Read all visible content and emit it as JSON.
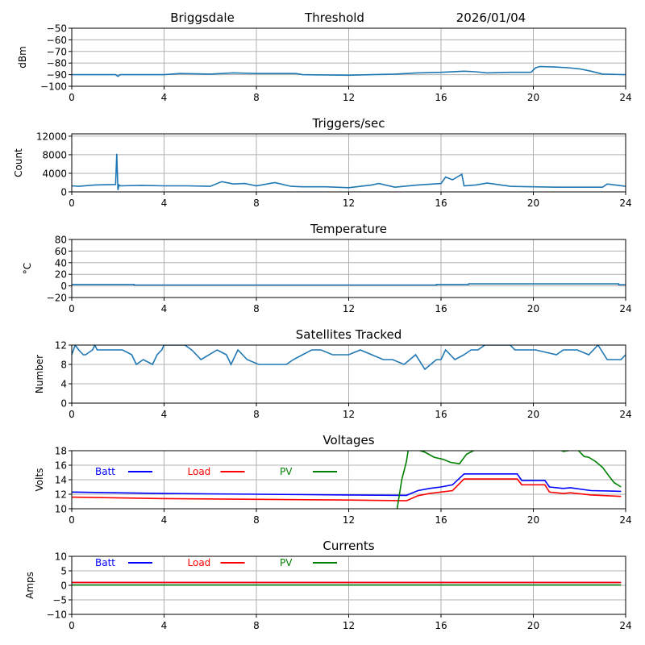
{
  "header": {
    "station": "Briggsdale",
    "subtitle": "Threshold",
    "date": "2026/01/04"
  },
  "chart_data": [
    {
      "type": "line",
      "id": "threshold",
      "title": "",
      "xlabel": "",
      "ylabel": "dBm",
      "xlim": [
        0,
        24
      ],
      "ylim": [
        -100,
        -50
      ],
      "xticks": [
        0,
        4,
        8,
        12,
        16,
        20,
        24
      ],
      "yticks": [
        -100,
        -90,
        -80,
        -70,
        -60,
        -50
      ],
      "ytick_labels": [
        "−100",
        "−90",
        "−80",
        "−70",
        "−60",
        "−50"
      ],
      "grid": true,
      "series": [
        {
          "name": "Threshold",
          "color": "#1f77b4",
          "x": [
            0,
            1.9,
            2.0,
            2.1,
            4,
            4.7,
            6,
            7,
            8,
            9.7,
            10,
            12,
            13,
            14,
            15,
            16,
            17,
            17.5,
            18,
            19,
            19.9,
            20.1,
            20.3,
            21,
            21.5,
            22,
            22.5,
            23,
            24
          ],
          "y": [
            -90,
            -90,
            -91.5,
            -90,
            -90,
            -89,
            -89.5,
            -88.5,
            -89,
            -89,
            -90,
            -90.5,
            -90,
            -89.5,
            -88.5,
            -88,
            -87,
            -87.5,
            -88.5,
            -88,
            -88,
            -84,
            -83,
            -83.5,
            -84,
            -85,
            -87,
            -89.5,
            -90
          ]
        }
      ]
    },
    {
      "type": "line",
      "id": "triggers",
      "title": "Triggers/sec",
      "xlabel": "",
      "ylabel": "Count",
      "xlim": [
        0,
        24
      ],
      "ylim": [
        0,
        12500
      ],
      "xticks": [
        0,
        4,
        8,
        12,
        16,
        20,
        24
      ],
      "yticks": [
        0,
        4000,
        8000,
        12000
      ],
      "grid": true,
      "series": [
        {
          "name": "Triggers",
          "color": "#1f77b4",
          "x": [
            0,
            0.3,
            1,
            1.9,
            1.95,
            2.0,
            2.05,
            2.1,
            3,
            4,
            5,
            6,
            6.5,
            7,
            7.5,
            8,
            8.8,
            9.5,
            10,
            11,
            12,
            13,
            13.3,
            14,
            15,
            16,
            16.2,
            16.5,
            16.9,
            17,
            17.5,
            18,
            19,
            20,
            21,
            22,
            23,
            23.2,
            24
          ],
          "y": [
            1300,
            1200,
            1500,
            1600,
            8200,
            400,
            1500,
            1300,
            1400,
            1300,
            1300,
            1200,
            2200,
            1700,
            1800,
            1300,
            2000,
            1200,
            1100,
            1100,
            900,
            1500,
            1800,
            1000,
            1500,
            1800,
            3200,
            2600,
            3800,
            1300,
            1500,
            1900,
            1200,
            1100,
            1000,
            1000,
            1000,
            1700,
            1200
          ]
        }
      ]
    },
    {
      "type": "line",
      "id": "temperature",
      "title": "Temperature",
      "xlabel": "",
      "ylabel": "°C",
      "xlim": [
        0,
        24
      ],
      "ylim": [
        -20,
        80
      ],
      "xticks": [
        0,
        4,
        8,
        12,
        16,
        20,
        24
      ],
      "yticks": [
        -20,
        0,
        20,
        40,
        60,
        80
      ],
      "ytick_labels": [
        "−20",
        "0",
        "20",
        "40",
        "60",
        "80"
      ],
      "grid": true,
      "series": [
        {
          "name": "Temperature",
          "color": "#1f77b4",
          "x": [
            0,
            2.7,
            2.7,
            15.8,
            15.8,
            17.2,
            17.2,
            23.7,
            23.7,
            24
          ],
          "y": [
            2.5,
            2.5,
            1.5,
            1.5,
            2.5,
            2.5,
            3.5,
            3.5,
            2,
            2
          ]
        }
      ]
    },
    {
      "type": "line",
      "id": "satellites",
      "title": "Satellites Tracked",
      "xlabel": "",
      "ylabel": "Number",
      "xlim": [
        0,
        24
      ],
      "ylim": [
        0,
        12
      ],
      "xticks": [
        0,
        4,
        8,
        12,
        16,
        20,
        24
      ],
      "yticks": [
        0,
        4,
        8,
        12
      ],
      "grid": true,
      "series": [
        {
          "name": "Satellites",
          "color": "#1f77b4",
          "x": [
            0,
            0.15,
            0.3,
            0.5,
            0.6,
            0.9,
            1.0,
            1.1,
            1.4,
            2.2,
            2.6,
            2.8,
            3.1,
            3.5,
            3.7,
            3.9,
            4.0,
            4.9,
            5.2,
            5.6,
            6.3,
            6.7,
            6.9,
            7.2,
            7.6,
            8.1,
            9.3,
            9.6,
            10,
            10.4,
            10.8,
            11.3,
            12,
            12.5,
            13,
            13.5,
            13.9,
            14.4,
            14.9,
            15.3,
            15.8,
            16,
            16.2,
            16.6,
            17.0,
            17.3,
            17.6,
            17.9,
            18.3,
            19.0,
            19.2,
            20.1,
            21.0,
            21.3,
            21.9,
            22.4,
            22.8,
            23.2,
            23.8,
            24
          ],
          "y": [
            10,
            12,
            11,
            10,
            10,
            11,
            12,
            11,
            11,
            11,
            10,
            8,
            9,
            8,
            10,
            11,
            12,
            12,
            11,
            9,
            11,
            10,
            8,
            11,
            9,
            8,
            8,
            9,
            10,
            11,
            11,
            10,
            10,
            11,
            10,
            9,
            9,
            8,
            10,
            7,
            9,
            9,
            11,
            9,
            10,
            11,
            11,
            12,
            12,
            12,
            11,
            11,
            10,
            11,
            11,
            10,
            12,
            9,
            9,
            10
          ]
        }
      ]
    },
    {
      "type": "line",
      "id": "voltages",
      "title": "Voltages",
      "xlabel": "",
      "ylabel": "Volts",
      "xlim": [
        0,
        24
      ],
      "ylim": [
        10,
        18
      ],
      "xticks": [
        0,
        4,
        8,
        12,
        16,
        20,
        24
      ],
      "yticks": [
        10,
        12,
        14,
        16,
        18
      ],
      "grid": true,
      "legend": {
        "placement": "top-left-inline",
        "entries": [
          "Batt",
          "Load",
          "PV"
        ]
      },
      "series": [
        {
          "name": "Batt",
          "color": "#0000ff",
          "x": [
            0,
            4,
            8,
            12,
            14.5,
            15,
            15.5,
            16,
            16.5,
            17.0,
            18,
            19.3,
            19.5,
            20.5,
            20.7,
            21.3,
            21.6,
            22.5,
            23.8
          ],
          "y": [
            12.3,
            12.1,
            12.0,
            11.9,
            11.85,
            12.5,
            12.8,
            13.0,
            13.3,
            14.8,
            14.8,
            14.8,
            13.9,
            13.9,
            13.0,
            12.8,
            12.9,
            12.5,
            12.4
          ]
        },
        {
          "name": "Load",
          "color": "#ff0000",
          "x": [
            0,
            4,
            8,
            12,
            14.5,
            15,
            15.5,
            16,
            16.5,
            17.0,
            18,
            19.3,
            19.5,
            20.5,
            20.7,
            21.3,
            21.6,
            22.5,
            23.8
          ],
          "y": [
            11.6,
            11.4,
            11.3,
            11.2,
            11.1,
            11.8,
            12.1,
            12.3,
            12.5,
            14.1,
            14.1,
            14.1,
            13.3,
            13.3,
            12.3,
            12.1,
            12.2,
            11.9,
            11.7
          ]
        },
        {
          "name": "PV",
          "color": "#008000",
          "x": [
            14.1,
            14.3,
            14.5,
            14.6,
            15.3,
            15.7,
            16.1,
            16.4,
            16.8,
            17.1,
            17.4,
            18.5,
            20.9,
            21.3,
            21.9,
            22.2,
            22.4,
            22.7,
            23.0,
            23.3,
            23.5,
            23.8
          ],
          "y": [
            10,
            14,
            16.5,
            18.5,
            17.8,
            17.1,
            16.8,
            16.4,
            16.2,
            17.5,
            18.0,
            18.5,
            18.5,
            17.9,
            18.2,
            17.2,
            17.1,
            16.5,
            15.7,
            14.4,
            13.6,
            13.0
          ]
        }
      ]
    },
    {
      "type": "line",
      "id": "currents",
      "title": "Currents",
      "xlabel": "",
      "ylabel": "Amps",
      "xlim": [
        0,
        24
      ],
      "ylim": [
        -10,
        10
      ],
      "xticks": [
        0,
        4,
        8,
        12,
        16,
        20,
        24
      ],
      "yticks": [
        -10,
        -5,
        0,
        5,
        10
      ],
      "ytick_labels": [
        "−10",
        "−5",
        "0",
        "5",
        "10"
      ],
      "grid": true,
      "legend": {
        "placement": "top-left-inline",
        "entries": [
          "Batt",
          "Load",
          "PV"
        ]
      },
      "series": [
        {
          "name": "Batt",
          "color": "#0000ff",
          "x": [
            0,
            23.8
          ],
          "y": [
            1.0,
            1.0
          ]
        },
        {
          "name": "Load",
          "color": "#ff0000",
          "x": [
            0,
            23.8
          ],
          "y": [
            1.0,
            1.0
          ]
        },
        {
          "name": "PV",
          "color": "#008000",
          "x": [
            0,
            23.8
          ],
          "y": [
            0.1,
            0.1
          ]
        }
      ]
    }
  ]
}
